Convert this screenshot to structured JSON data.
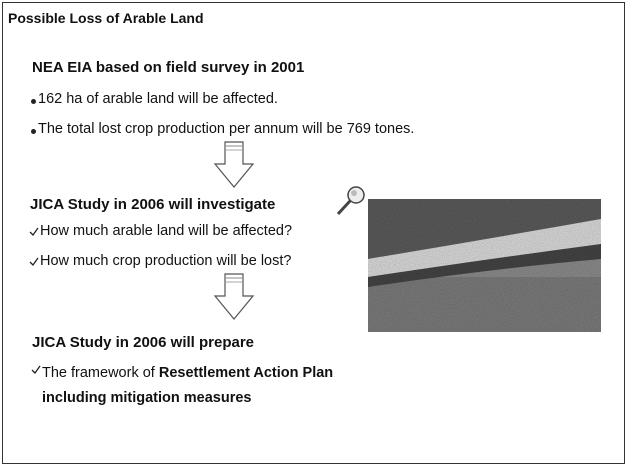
{
  "title": "Possible Loss of Arable Land",
  "sections": [
    {
      "heading": "NEA  EIA based on field survey in 2001",
      "items": [
        "162 ha of arable land will be affected.",
        "The total lost crop production per annum will be 769 tones."
      ]
    },
    {
      "heading": "JICA Study in 2006 will investigate",
      "items": [
        "How much arable land will be affected?",
        "How much crop production will be lost?"
      ]
    },
    {
      "heading": "JICA Study in 2006 will prepare",
      "items": [
        {
          "plain": "The framework of ",
          "bold": "Resettlement Action Plan including mitigation measures"
        }
      ]
    }
  ]
}
